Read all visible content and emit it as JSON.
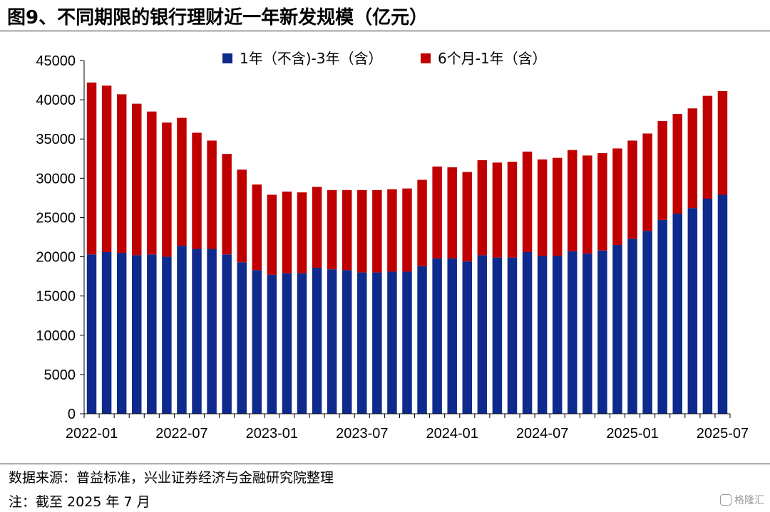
{
  "title": "图9、不同期限的银行理财近一年新发规模（亿元）",
  "source": "数据来源：普益标准，兴业证券经济与金融研究院整理",
  "note": "注：截至 2025 年 7 月",
  "watermark": "格隆汇",
  "chart_data": {
    "type": "bar",
    "stacked": true,
    "title": "",
    "xlabel": "",
    "ylabel": "",
    "ylim": [
      0,
      45000
    ],
    "yticks": [
      0,
      5000,
      10000,
      15000,
      20000,
      25000,
      30000,
      35000,
      40000,
      45000
    ],
    "xtick_labels": [
      "2022-01",
      "2022-07",
      "2023-01",
      "2023-07",
      "2024-01",
      "2024-07",
      "2025-01",
      "2025-07"
    ],
    "legend_position": "top-center",
    "grid": false,
    "categories": [
      "2022-01",
      "2022-02",
      "2022-03",
      "2022-04",
      "2022-05",
      "2022-06",
      "2022-07",
      "2022-08",
      "2022-09",
      "2022-10",
      "2022-11",
      "2022-12",
      "2023-01",
      "2023-02",
      "2023-03",
      "2023-04",
      "2023-05",
      "2023-06",
      "2023-07",
      "2023-08",
      "2023-09",
      "2023-10",
      "2023-11",
      "2023-12",
      "2024-01",
      "2024-02",
      "2024-03",
      "2024-04",
      "2024-05",
      "2024-06",
      "2024-07",
      "2024-08",
      "2024-09",
      "2024-10",
      "2024-11",
      "2024-12",
      "2025-01",
      "2025-02",
      "2025-03",
      "2025-04",
      "2025-05",
      "2025-06",
      "2025-07"
    ],
    "series": [
      {
        "name": "1年（不含)-3年（含）",
        "color": "#0D2A8C",
        "values": [
          20300,
          20600,
          20500,
          20200,
          20300,
          20000,
          21400,
          21000,
          21000,
          20300,
          19300,
          18300,
          17700,
          17900,
          17900,
          18600,
          18400,
          18300,
          18000,
          18000,
          18100,
          18100,
          18800,
          19800,
          19800,
          19400,
          20200,
          19900,
          19900,
          20600,
          20100,
          20100,
          20700,
          20400,
          20800,
          21500,
          22300,
          23300,
          24700,
          25500,
          26200,
          27400,
          27900
        ]
      },
      {
        "name": "6个月-1年（含）",
        "color": "#C00000",
        "values": [
          21900,
          21200,
          20200,
          19300,
          18200,
          17100,
          16300,
          14800,
          13800,
          12800,
          11800,
          10900,
          10200,
          10400,
          10300,
          10300,
          10100,
          10200,
          10500,
          10500,
          10500,
          10600,
          11000,
          11700,
          11600,
          11400,
          12100,
          12100,
          12200,
          12800,
          12300,
          12500,
          12900,
          12500,
          12400,
          12300,
          12500,
          12400,
          12600,
          12700,
          12700,
          13100,
          13200
        ]
      }
    ]
  }
}
